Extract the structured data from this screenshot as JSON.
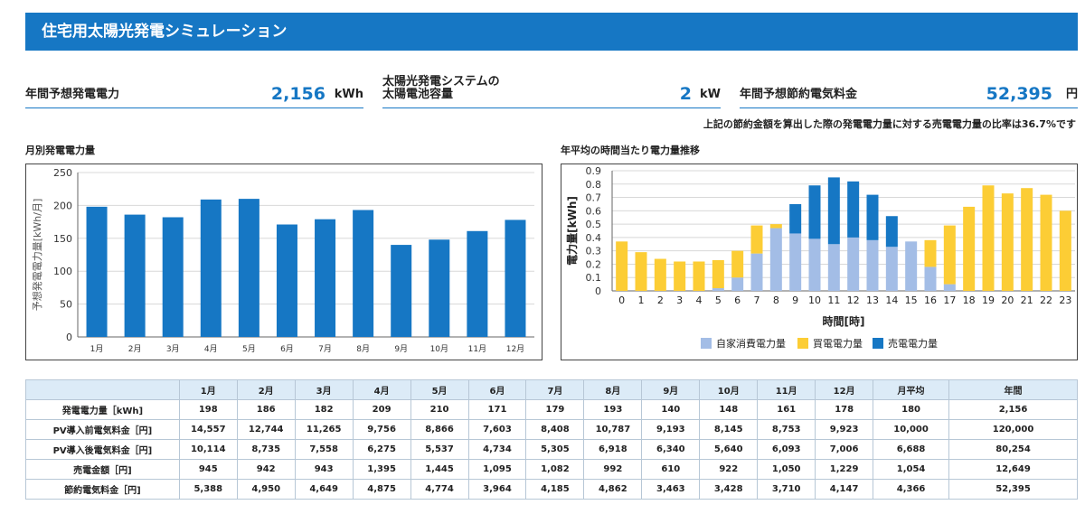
{
  "header": {
    "title": "住宅用太陽光発電シミュレーション"
  },
  "summary": {
    "annual_generation": {
      "label": "年間予想発電電力",
      "value": "2,156",
      "unit": "kWh"
    },
    "capacity": {
      "label_line1": "太陽光発電システムの",
      "label_line2": "太陽電池容量",
      "value": "2",
      "unit": "kW"
    },
    "savings": {
      "label": "年間予想節約電気料金",
      "value": "52,395",
      "unit": "円"
    }
  },
  "note": "上記の節約金額を算出した際の発電電力量に対する売電電力量の比率は36.7%です",
  "colors": {
    "accent": "#1677c4",
    "self": "#a3bde6",
    "buy": "#fccd35",
    "sell": "#1677c4"
  },
  "monthly_chart": {
    "title": "月別発電電力量",
    "ylabel": "予想発電電力量[kWh/月]",
    "yticks": [
      "0",
      "50",
      "100",
      "150",
      "200",
      "250"
    ]
  },
  "hourly_chart": {
    "title": "年平均の時間当たり電力量推移",
    "ylabel": "電力量[kWh]",
    "xlabel": "時間[時]",
    "yticks": [
      "0",
      "0.1",
      "0.2",
      "0.3",
      "0.4",
      "0.5",
      "0.6",
      "0.7",
      "0.8",
      "0.9"
    ],
    "legend": [
      "自家消費電力量",
      "買電電力量",
      "売電電力量"
    ]
  },
  "chart_data": [
    {
      "type": "bar",
      "title": "月別発電電力量",
      "xlabel": "",
      "ylabel": "予想発電電力量[kWh/月]",
      "categories": [
        "1月",
        "2月",
        "3月",
        "4月",
        "5月",
        "6月",
        "7月",
        "8月",
        "9月",
        "10月",
        "11月",
        "12月"
      ],
      "values": [
        198,
        186,
        182,
        209,
        210,
        171,
        179,
        193,
        140,
        148,
        161,
        178
      ],
      "ylim": [
        0,
        250
      ],
      "grid": true
    },
    {
      "type": "bar",
      "stacked": true,
      "title": "年平均の時間当たり電力量推移",
      "xlabel": "時間[時]",
      "ylabel": "電力量[kWh]",
      "categories": [
        "0",
        "1",
        "2",
        "3",
        "4",
        "5",
        "6",
        "7",
        "8",
        "9",
        "10",
        "11",
        "12",
        "13",
        "14",
        "15",
        "16",
        "17",
        "18",
        "19",
        "20",
        "21",
        "22",
        "23"
      ],
      "series": [
        {
          "name": "自家消費電力量",
          "values": [
            0,
            0,
            0,
            0,
            0,
            0.02,
            0.1,
            0.28,
            0.47,
            0.43,
            0.39,
            0.35,
            0.4,
            0.38,
            0.33,
            0.37,
            0.18,
            0.05,
            0,
            0,
            0,
            0,
            0,
            0
          ]
        },
        {
          "name": "買電電力量",
          "values": [
            0.37,
            0.29,
            0.24,
            0.22,
            0.22,
            0.21,
            0.2,
            0.21,
            0.03,
            0,
            0,
            0,
            0,
            0,
            0,
            0,
            0.2,
            0.44,
            0.63,
            0.79,
            0.73,
            0.77,
            0.72,
            0.6
          ]
        },
        {
          "name": "売電電力量",
          "values": [
            0,
            0,
            0,
            0,
            0,
            0,
            0,
            0,
            0,
            0.22,
            0.4,
            0.5,
            0.42,
            0.34,
            0.23,
            0,
            0,
            0,
            0,
            0,
            0,
            0,
            0,
            0
          ]
        }
      ],
      "ylim": [
        0,
        0.9
      ],
      "grid": true,
      "legend": "bottom"
    }
  ],
  "table": {
    "headers": [
      "",
      "1月",
      "2月",
      "3月",
      "4月",
      "5月",
      "6月",
      "7月",
      "8月",
      "9月",
      "10月",
      "11月",
      "12月",
      "月平均",
      "年間"
    ],
    "rows": [
      {
        "label": "発電電力量［kWh]",
        "cells": [
          "198",
          "186",
          "182",
          "209",
          "210",
          "171",
          "179",
          "193",
          "140",
          "148",
          "161",
          "178",
          "180",
          "2,156"
        ]
      },
      {
        "label": "PV導入前電気料金［円]",
        "cells": [
          "14,557",
          "12,744",
          "11,265",
          "9,756",
          "8,866",
          "7,603",
          "8,408",
          "10,787",
          "9,193",
          "8,145",
          "8,753",
          "9,923",
          "10,000",
          "120,000"
        ]
      },
      {
        "label": "PV導入後電気料金［円]",
        "cells": [
          "10,114",
          "8,735",
          "7,558",
          "6,275",
          "5,537",
          "4,734",
          "5,305",
          "6,918",
          "6,340",
          "5,640",
          "6,093",
          "7,006",
          "6,688",
          "80,254"
        ]
      },
      {
        "label": "売電金額［円]",
        "cells": [
          "945",
          "942",
          "943",
          "1,395",
          "1,445",
          "1,095",
          "1,082",
          "992",
          "610",
          "922",
          "1,050",
          "1,229",
          "1,054",
          "12,649"
        ]
      },
      {
        "label": "節約電気料金［円]",
        "cells": [
          "5,388",
          "4,950",
          "4,649",
          "4,875",
          "4,774",
          "3,964",
          "4,185",
          "4,862",
          "3,463",
          "3,428",
          "3,710",
          "4,147",
          "4,366",
          "52,395"
        ]
      }
    ]
  }
}
